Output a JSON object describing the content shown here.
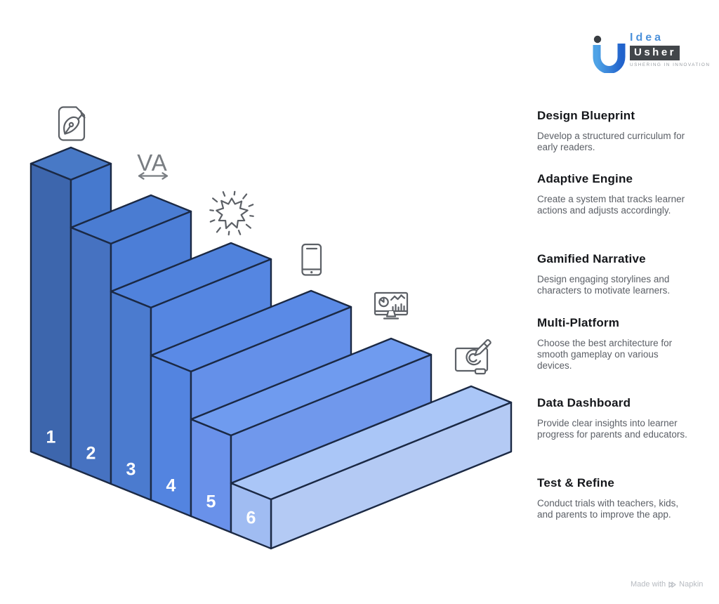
{
  "logo": {
    "brand_top": "Idea",
    "brand_bottom": "Usher",
    "tagline": "USHERING IN INNOVATION"
  },
  "colors": {
    "outline": "#1b2944",
    "icon": "#5c6066",
    "number": "#ffffff",
    "logo_gradient_start": "#4fa3e6",
    "logo_gradient_end": "#2263cc"
  },
  "icons": {
    "kerning_label": "VA"
  },
  "steps": [
    {
      "number": "1",
      "title": "Design Blueprint",
      "description": "Develop a structured curriculum for early readers.",
      "icon": "pen-document-icon",
      "side_color": "#3d66ad",
      "top_color": "#4879c6",
      "riser_color": "#4879c6"
    },
    {
      "number": "2",
      "title": "Adaptive Engine",
      "description": "Create a system that tracks learner actions and adjusts accordingly.",
      "icon": "kerning-icon",
      "side_color": "#4672c1",
      "top_color": "#4a7cd2",
      "riser_color": "#4679ce"
    },
    {
      "number": "3",
      "title": "Gamified Narrative",
      "description": "Design engaging storylines and characters to motivate learners.",
      "icon": "burst-icon",
      "side_color": "#4b7bcf",
      "top_color": "#5082dc",
      "riser_color": "#4c7ed7"
    },
    {
      "number": "4",
      "title": "Multi-Platform",
      "description": "Choose the best architecture for smooth gameplay on various devices.",
      "icon": "smartphone-icon",
      "side_color": "#5384e0",
      "top_color": "#5a8ae6",
      "riser_color": "#5586e1"
    },
    {
      "number": "5",
      "title": "Data Dashboard",
      "description": "Provide clear insights into learner progress for parents and educators.",
      "icon": "dashboard-monitor-icon",
      "side_color": "#6991ea",
      "top_color": "#6f9bef",
      "riser_color": "#6490e9"
    },
    {
      "number": "6",
      "title": "Test & Refine",
      "description": "Conduct trials with teachers, kids, and parents to improve the app.",
      "icon": "sketch-tablet-icon",
      "side_color": "#a0bcf2",
      "top_color": "#aac6f7",
      "riser_color": "#7098ec",
      "end_color": "#b4caf4"
    }
  ],
  "footer": {
    "made_with": "Made with",
    "brand": "Napkin"
  }
}
